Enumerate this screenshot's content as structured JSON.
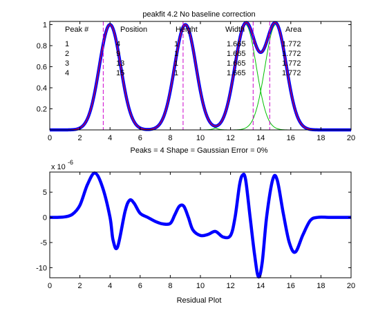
{
  "top": {
    "title": "peakfit 4.2    No baseline correction",
    "xlim": [
      0,
      20
    ],
    "ylim": [
      0,
      1.03
    ],
    "x_ticks": [
      "0",
      "2",
      "4",
      "6",
      "8",
      "10",
      "12",
      "14",
      "16",
      "18",
      "20"
    ],
    "y_ticks": [
      "0.2",
      "0.4",
      "0.6",
      "0.8",
      "1"
    ],
    "xlabel": "Peaks = 4     Shape = Gaussian     Error = 0%",
    "table": {
      "headers": [
        "Peak #",
        "Position",
        "Height",
        "Width",
        "Area"
      ],
      "rows": [
        [
          "1",
          "4",
          "1",
          "1.665",
          "1.772"
        ],
        [
          "2",
          "9",
          "1",
          "1.665",
          "1.772"
        ],
        [
          "3",
          "13",
          "1",
          "1.665",
          "1.772"
        ],
        [
          "4",
          "15",
          "1",
          "1.665",
          "1.772"
        ]
      ]
    }
  },
  "bottom": {
    "xlabel": "Residual Plot",
    "exponent_label": "x 10",
    "exponent": "-6",
    "xlim": [
      0,
      20
    ],
    "ylim": [
      -12,
      9
    ],
    "x_ticks": [
      "0",
      "2",
      "4",
      "6",
      "8",
      "10",
      "12",
      "14",
      "16",
      "18",
      "20"
    ],
    "y_ticks": [
      "5",
      "0",
      "-5",
      "-10"
    ]
  },
  "colors": {
    "data": "#0000ff",
    "fit": "#ff0000",
    "components": "#00c000",
    "peak_markers": "#cc00cc",
    "axes": "#000000"
  },
  "chart_data": [
    {
      "type": "line",
      "title": "peakfit 4.2    No baseline correction",
      "xlabel": "Peaks = 4     Shape = Gaussian     Error = 0%",
      "xlim": [
        0,
        20
      ],
      "ylim": [
        0,
        1.03
      ],
      "peaks": [
        {
          "position": 4,
          "height": 1,
          "width": 1.665,
          "area": 1.772
        },
        {
          "position": 9,
          "height": 1,
          "width": 1.665,
          "area": 1.772
        },
        {
          "position": 13,
          "height": 1,
          "width": 1.665,
          "area": 1.772
        },
        {
          "position": 15,
          "height": 1,
          "width": 1.665,
          "area": 1.772
        }
      ],
      "peak_marker_lines_x": [
        3.55,
        8.85,
        13.5,
        14.6
      ]
    },
    {
      "type": "line",
      "xlabel": "Residual Plot",
      "xlim": [
        0,
        20
      ],
      "ylim": [
        -12,
        9
      ],
      "y_scale_exponent": -6,
      "x": [
        0,
        0.5,
        1,
        1.5,
        2,
        2.5,
        3,
        3.5,
        4,
        4.2,
        4.5,
        5,
        5.3,
        5.6,
        6,
        6.5,
        7,
        7.5,
        8,
        8.3,
        8.6,
        8.9,
        9.2,
        9.5,
        10,
        10.5,
        11,
        11.5,
        12,
        12.3,
        12.6,
        12.8,
        13,
        13.3,
        13.6,
        13.85,
        14.1,
        14.4,
        14.8,
        15.1,
        15.5,
        15.9,
        16.3,
        16.8,
        17.3,
        17.8,
        18.5,
        19,
        20
      ],
      "y": [
        0,
        0,
        0.1,
        0.6,
        2.4,
        6.5,
        8.8,
        6,
        0,
        -4.5,
        -5.9,
        1.2,
        3.4,
        2.8,
        0.8,
        0,
        -0.8,
        -1.3,
        -1.2,
        0.5,
        2.2,
        2.2,
        0,
        -2.5,
        -3.6,
        -3.4,
        -2.8,
        -3.9,
        -3.6,
        0,
        6.5,
        8.4,
        7.5,
        0,
        -7.5,
        -11.8,
        -9,
        0.2,
        7.5,
        7.4,
        0.8,
        -5,
        -6.9,
        -3.5,
        -0.6,
        0,
        0,
        0,
        0
      ]
    }
  ]
}
